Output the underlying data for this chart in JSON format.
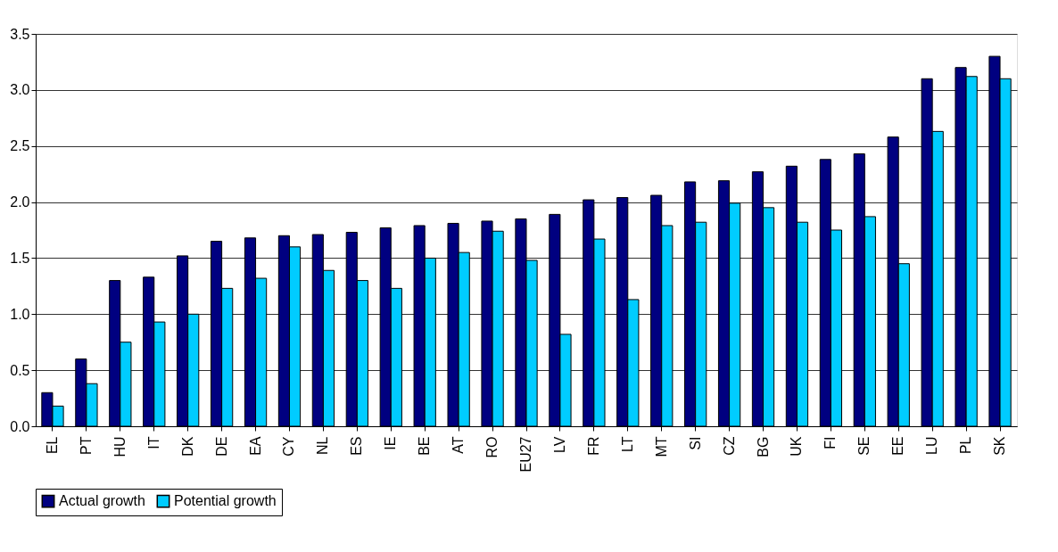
{
  "chart_data": {
    "type": "bar",
    "categories": [
      "EL",
      "PT",
      "HU",
      "IT",
      "DK",
      "DE",
      "EA",
      "CY",
      "NL",
      "ES",
      "IE",
      "BE",
      "AT",
      "RO",
      "EU27",
      "LV",
      "FR",
      "LT",
      "MT",
      "SI",
      "CZ",
      "BG",
      "UK",
      "FI",
      "SE",
      "EE",
      "LU",
      "PL",
      "SK"
    ],
    "series": [
      {
        "name": "Actual growth",
        "color": "#000080",
        "values": [
          0.3,
          0.6,
          1.3,
          1.33,
          1.52,
          1.65,
          1.68,
          1.7,
          1.71,
          1.73,
          1.77,
          1.79,
          1.81,
          1.83,
          1.85,
          1.89,
          2.02,
          2.04,
          2.06,
          2.18,
          2.19,
          2.27,
          2.32,
          2.38,
          2.43,
          2.58,
          3.1,
          3.2,
          3.3
        ]
      },
      {
        "name": "Potential growth",
        "color": "#00ccff",
        "values": [
          0.18,
          0.38,
          0.75,
          0.93,
          1.0,
          1.23,
          1.32,
          1.6,
          1.39,
          1.3,
          1.23,
          1.5,
          1.55,
          1.74,
          1.48,
          0.82,
          1.67,
          1.13,
          1.79,
          1.82,
          1.99,
          1.95,
          1.82,
          1.75,
          1.87,
          1.45,
          2.63,
          3.12,
          3.1
        ]
      }
    ],
    "ylim": [
      0,
      3.5
    ],
    "yticks": [
      {
        "value": 0,
        "label": "0.0"
      },
      {
        "value": 0.5,
        "label": "0.5"
      },
      {
        "value": 1,
        "label": "1.0"
      },
      {
        "value": 1.5,
        "label": "1.5"
      },
      {
        "value": 2,
        "label": "2.0"
      },
      {
        "value": 2.5,
        "label": "2.5"
      },
      {
        "value": 3,
        "label": "3.0"
      },
      {
        "value": 3.5,
        "label": "3.5"
      }
    ],
    "grid": "y",
    "legend": "bottom"
  }
}
